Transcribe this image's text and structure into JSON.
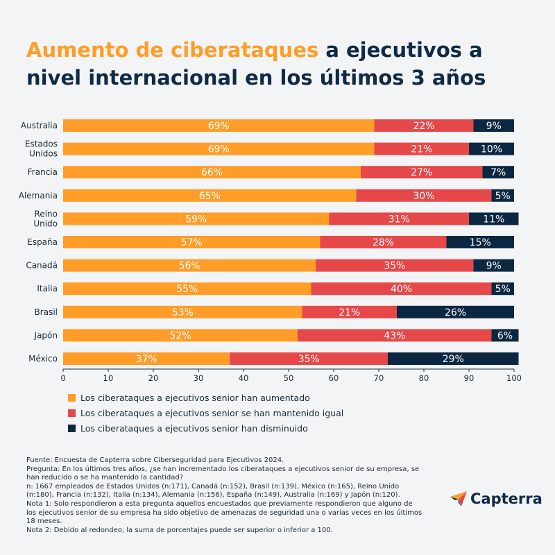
{
  "title": {
    "highlight": "Aumento de ciberataques",
    "rest": " a ejecutivos a nivel internacional en los últimos 3 años"
  },
  "colors": {
    "aumentado": "#ff9d28",
    "mantenido": "#e6484a",
    "disminuido": "#0c2741",
    "title_highlight": "#ff9d28",
    "title": "#0e2a47"
  },
  "chart_data": {
    "type": "bar",
    "orientation": "horizontal",
    "stacked": true,
    "categories": [
      "Australia",
      "Estados Unidos",
      "Francia",
      "Alemania",
      "Reino Unido",
      "España",
      "Canadá",
      "Italia",
      "Brasil",
      "Japón",
      "México"
    ],
    "series": [
      {
        "name": "Los ciberataques a ejecutivos senior han aumentado",
        "values": [
          69,
          69,
          66,
          65,
          59,
          57,
          56,
          55,
          53,
          52,
          37
        ],
        "labels": [
          "69%",
          "69%",
          "66%",
          "65%",
          "59%",
          "57%",
          "56%",
          "55%",
          "53%",
          "52%",
          "37%"
        ]
      },
      {
        "name": "Los ciberataques a ejecutivos senior se han mantenido igual",
        "values": [
          22,
          21,
          27,
          30,
          31,
          28,
          35,
          40,
          21,
          43,
          35
        ],
        "labels": [
          "22%",
          "21%",
          "27%",
          "30%",
          "31%",
          "28%",
          "35%",
          "40%",
          "21%",
          "43%",
          "35%"
        ]
      },
      {
        "name": "Los ciberataques a ejecutivos senior han disminuido",
        "values": [
          9,
          10,
          7,
          5,
          11,
          15,
          9,
          5,
          26,
          6,
          29
        ],
        "labels": [
          "9%",
          "10%",
          "7%",
          "5%",
          "11%",
          "15%",
          "9%",
          "5%",
          "26%",
          "6%",
          "29%"
        ]
      }
    ],
    "xlim": [
      0,
      100
    ],
    "xticks": [
      0,
      10,
      20,
      30,
      40,
      50,
      60,
      70,
      80,
      90,
      100
    ],
    "grid": false,
    "legend_position": "bottom-left"
  },
  "legend": [
    "Los ciberataques a ejecutivos senior han aumentado",
    "Los ciberataques a ejecutivos senior se han mantenido igual",
    "Los ciberataques a ejecutivos senior han disminuido"
  ],
  "notes": [
    "Fuente: Encuesta de Capterra sobre Ciberseguridad para Ejecutivos 2024.",
    "Pregunta: En los últimos tres años, ¿se han incrementado los ciberataques a ejecutivos senior de su empresa, se han reducido o se ha mantenido la cantidad?",
    "n: 1667 empleados de Estados Unidos (n:171), Canadá (n:152), Brasil (n:139), México (n:165), Reino Unido (n:180), Francia (n:132), Italia (n:134), Alemania (n:156), España (n:149), Australia (n:169) y Japón (n:120).",
    "Nota 1: Solo respondieron a esta pregunta aquellos encuestados que previamente respondieron que alguno de los ejecutivos senior de su empresa ha sido objetivo de amenazas de seguridad una o varias veces en los últimos 18 meses.",
    "Nota 2: Debido al redondeo, la suma de porcentajes puede ser superior o inferior a 100."
  ],
  "logo": {
    "text": "Capterra",
    "icon": "capterra-arrow-icon"
  }
}
